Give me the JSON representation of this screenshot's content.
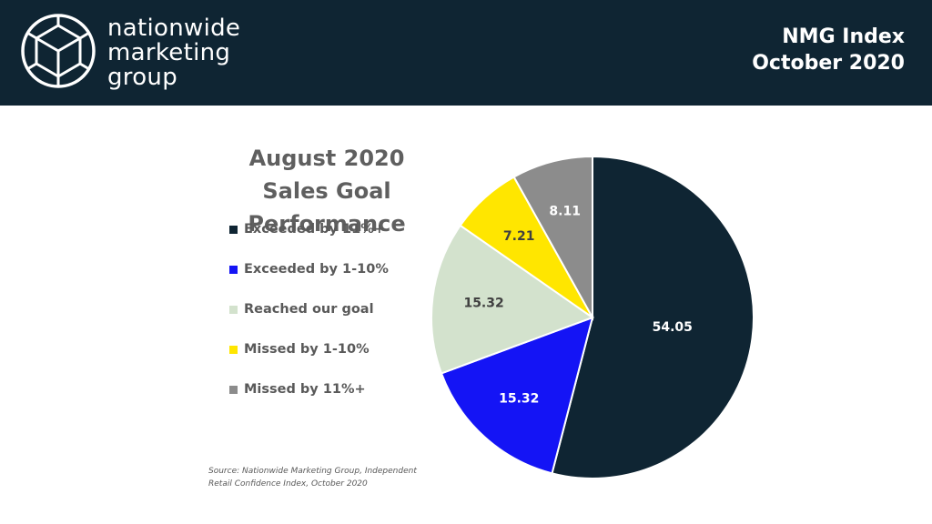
{
  "header": {
    "brand_lines": [
      "nationwide",
      "marketing",
      "group"
    ],
    "index_title": "NMG Index",
    "index_date": "October 2020",
    "background": "#0f2533"
  },
  "chart_data": {
    "type": "pie",
    "title": "August 2020 Sales Goal Performance",
    "title_lines": [
      "August 2020",
      "Sales Goal Performance"
    ],
    "legend_position": "left",
    "categories": [
      "Exceeded by 11%+",
      "Exceeded by 1-10%",
      "Reached our goal",
      "Missed by 1-10%",
      "Missed by 11%+"
    ],
    "values": [
      54.05,
      15.32,
      15.32,
      7.21,
      8.11
    ],
    "data_labels": [
      "54.05",
      "15.32",
      "15.32",
      "7.21",
      "8.11"
    ],
    "colors": [
      "#0f2533",
      "#1414f5",
      "#d3e2cd",
      "#ffe600",
      "#8c8c8c"
    ],
    "label_colors": [
      "#ffffff",
      "#ffffff",
      "#404040",
      "#404040",
      "#ffffff"
    ]
  },
  "source": {
    "text": "Source: Nationwide Marketing Group, Independent Retail Confidence Index, October 2020"
  }
}
